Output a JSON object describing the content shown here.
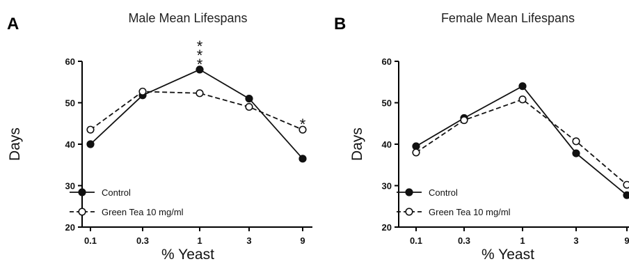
{
  "chart_data": [
    {
      "type": "line",
      "panel_label": "A",
      "title": "Male Mean Lifespans",
      "xlabel": "% Yeast",
      "ylabel": "Days",
      "categories": [
        "0.1",
        "0.3",
        "1",
        "3",
        "9"
      ],
      "ylim": [
        20,
        60
      ],
      "yticks": [
        20,
        30,
        40,
        50,
        60
      ],
      "series": [
        {
          "name": "Control",
          "values": [
            40.0,
            51.8,
            58.0,
            51.0,
            36.5
          ],
          "marker": "filled",
          "dash": "solid"
        },
        {
          "name": "Green Tea 10 mg/ml",
          "values": [
            43.5,
            52.7,
            52.3,
            49.0,
            43.5
          ],
          "marker": "open",
          "dash": "dashed"
        }
      ],
      "annotations": [
        {
          "category": "1",
          "text": "***"
        },
        {
          "category": "9",
          "text": "*"
        }
      ],
      "legend_position": "bottom-left"
    },
    {
      "type": "line",
      "panel_label": "B",
      "title": "Female Mean Lifespans",
      "xlabel": "% Yeast",
      "ylabel": "Days",
      "categories": [
        "0.1",
        "0.3",
        "1",
        "3",
        "9"
      ],
      "ylim": [
        20,
        60
      ],
      "yticks": [
        20,
        30,
        40,
        50,
        60
      ],
      "series": [
        {
          "name": "Control",
          "values": [
            39.5,
            46.3,
            54.0,
            37.8,
            27.7
          ],
          "marker": "filled",
          "dash": "solid"
        },
        {
          "name": "Green Tea 10 mg/ml",
          "values": [
            38.0,
            45.8,
            50.8,
            40.7,
            30.2
          ],
          "marker": "open",
          "dash": "dashed"
        }
      ],
      "annotations": [],
      "legend_position": "bottom-left"
    }
  ]
}
